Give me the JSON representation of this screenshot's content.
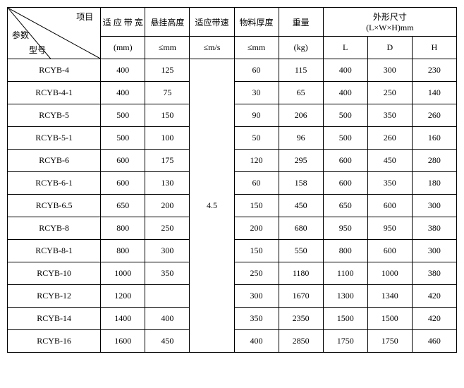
{
  "headers": {
    "diag_top": "项目",
    "diag_mid": "参数",
    "diag_bot": "型号",
    "belt_width": "适 应 带 宽",
    "belt_width_unit": "(mm)",
    "hang_height": "悬挂高度",
    "hang_height_unit": "≤mm",
    "belt_speed": "适应带速",
    "belt_speed_unit": "≤m/s",
    "mat_thick": "物料厚度",
    "mat_thick_unit": "≤mm",
    "weight": "重量",
    "weight_unit": "(kg)",
    "outer_dim": "外形尺寸",
    "outer_dim_unit": "(L×W×H)mm",
    "L": "L",
    "D": "D",
    "H": "H"
  },
  "belt_speed_value": "4.5",
  "rows": [
    {
      "model": "RCYB-4",
      "bw": "400",
      "hh": "125",
      "mt": "60",
      "wt": "115",
      "l": "400",
      "d": "300",
      "h": "230"
    },
    {
      "model": "RCYB-4-1",
      "bw": "400",
      "hh": "75",
      "mt": "30",
      "wt": "65",
      "l": "400",
      "d": "250",
      "h": "140"
    },
    {
      "model": "RCYB-5",
      "bw": "500",
      "hh": "150",
      "mt": "90",
      "wt": "206",
      "l": "500",
      "d": "350",
      "h": "260"
    },
    {
      "model": "RCYB-5-1",
      "bw": "500",
      "hh": "100",
      "mt": "50",
      "wt": "96",
      "l": "500",
      "d": "260",
      "h": "160"
    },
    {
      "model": "RCYB-6",
      "bw": "600",
      "hh": "175",
      "mt": "120",
      "wt": "295",
      "l": "600",
      "d": "450",
      "h": "280"
    },
    {
      "model": "RCYB-6-1",
      "bw": "600",
      "hh": "130",
      "mt": "60",
      "wt": "158",
      "l": "600",
      "d": "350",
      "h": "180"
    },
    {
      "model": "RCYB-6.5",
      "bw": "650",
      "hh": "200",
      "mt": "150",
      "wt": "450",
      "l": "650",
      "d": "600",
      "h": "300"
    },
    {
      "model": "RCYB-8",
      "bw": "800",
      "hh": "250",
      "mt": "200",
      "wt": "680",
      "l": "950",
      "d": "950",
      "h": "380"
    },
    {
      "model": "RCYB-8-1",
      "bw": "800",
      "hh": "300",
      "mt": "150",
      "wt": "550",
      "l": "800",
      "d": "600",
      "h": "300"
    },
    {
      "model": "RCYB-10",
      "bw": "1000",
      "hh": "350",
      "mt": "250",
      "wt": "1180",
      "l": "1100",
      "d": "1000",
      "h": "380"
    },
    {
      "model": "RCYB-12",
      "bw": "1200",
      "hh": "",
      "mt": "300",
      "wt": "1670",
      "l": "1300",
      "d": "1340",
      "h": "420"
    },
    {
      "model": "RCYB-14",
      "bw": "1400",
      "hh": "400",
      "mt": "350",
      "wt": "2350",
      "l": "1500",
      "d": "1500",
      "h": "420"
    },
    {
      "model": "RCYB-16",
      "bw": "1600",
      "hh": "450",
      "mt": "400",
      "wt": "2850",
      "l": "1750",
      "d": "1750",
      "h": "460"
    }
  ]
}
